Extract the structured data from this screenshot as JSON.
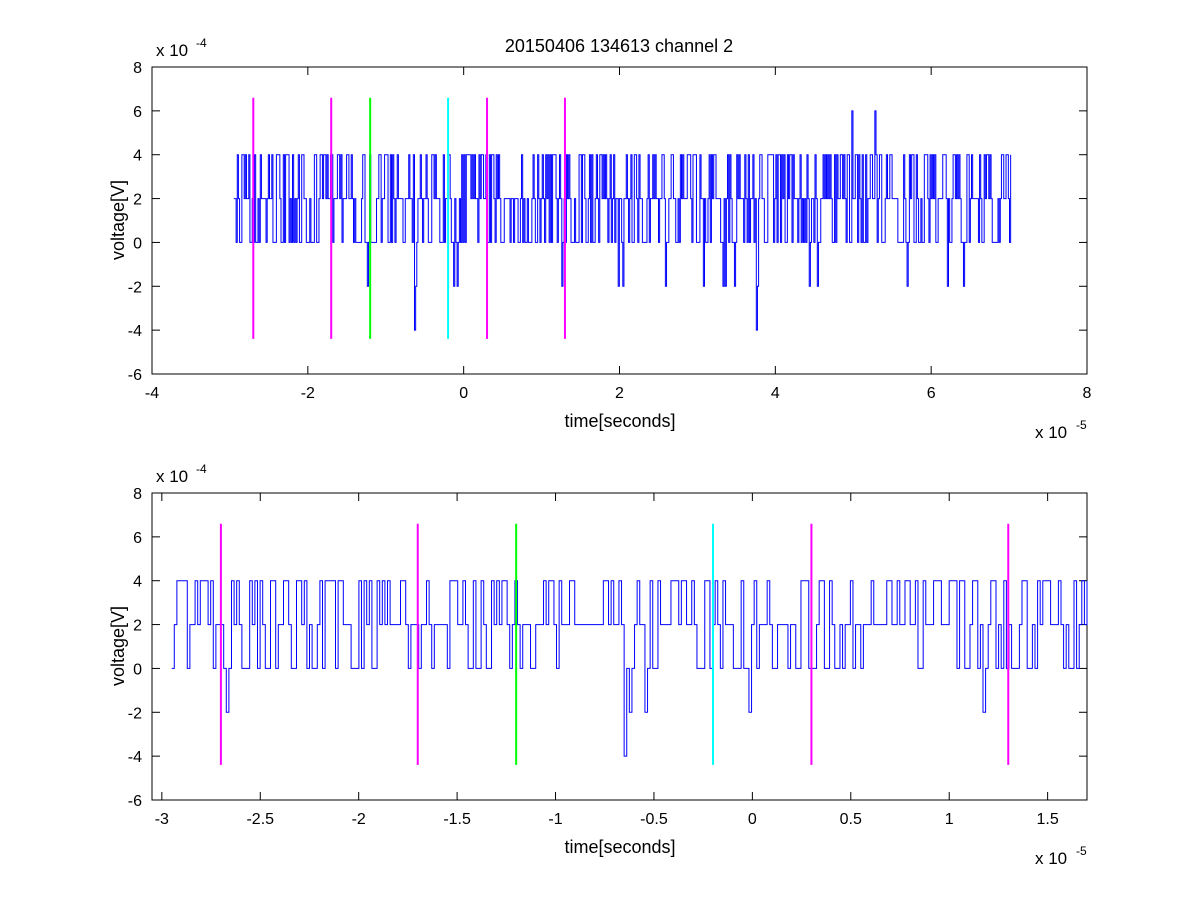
{
  "chart_data": [
    {
      "type": "line",
      "title": "20150406 134613 channel 2",
      "xlabel": "time[seconds]",
      "ylabel": "voltage[V]",
      "x_exponent_label": "x 10",
      "x_exponent": "-5",
      "y_exponent_label": "x 10",
      "y_exponent": "-4",
      "xlim": [
        -4,
        8
      ],
      "ylim": [
        -6,
        8
      ],
      "xticks": [
        "-4",
        "-2",
        "0",
        "2",
        "4",
        "6",
        "8"
      ],
      "yticks": [
        "-6",
        "-4",
        "-2",
        "0",
        "2",
        "4",
        "6",
        "8"
      ],
      "grid": false,
      "series": [
        {
          "color": "#0000ff",
          "x_range": [
            -2.95,
            7.02
          ],
          "baseline": 2,
          "levels": [
            -4,
            -2,
            0,
            2,
            4,
            6
          ],
          "peaks": [
            {
              "x": 4.98,
              "y": 6
            },
            {
              "x": 5.28,
              "y": 6
            },
            {
              "x": 5.35,
              "y": 4
            },
            {
              "x": 3.75,
              "y": -4
            },
            {
              "x": -0.63,
              "y": -4
            }
          ]
        }
      ],
      "markers": [
        {
          "x": -2.7,
          "color": "#ff00ff",
          "y_range": [
            -4.4,
            6.6
          ]
        },
        {
          "x": -1.7,
          "color": "#ff00ff",
          "y_range": [
            -4.4,
            6.6
          ]
        },
        {
          "x": -1.2,
          "color": "#00ff00",
          "y_range": [
            -4.4,
            6.6
          ]
        },
        {
          "x": -0.2,
          "color": "#00ffff",
          "y_range": [
            -4.4,
            6.6
          ]
        },
        {
          "x": 0.3,
          "color": "#ff00ff",
          "y_range": [
            -4.4,
            6.6
          ]
        },
        {
          "x": 1.3,
          "color": "#ff00ff",
          "y_range": [
            -4.4,
            6.6
          ]
        }
      ]
    },
    {
      "type": "line",
      "title": "",
      "xlabel": "time[seconds]",
      "ylabel": "voltage[V]",
      "x_exponent_label": "x 10",
      "x_exponent": "-5",
      "y_exponent_label": "x 10",
      "y_exponent": "-4",
      "xlim": [
        -3.05,
        1.7
      ],
      "ylim": [
        -6,
        8
      ],
      "xticks": [
        "-3",
        "-2.5",
        "-2",
        "-1.5",
        "-1",
        "-0.5",
        "0",
        "0.5",
        "1",
        "1.5"
      ],
      "yticks": [
        "-6",
        "-4",
        "-2",
        "0",
        "2",
        "4",
        "6",
        "8"
      ],
      "grid": false,
      "series": [
        {
          "color": "#0000ff",
          "x_range": [
            -2.95,
            1.7
          ],
          "baseline": 2,
          "levels": [
            -4,
            -2,
            0,
            2,
            4
          ],
          "peaks": [
            {
              "x": -0.65,
              "y": -4
            }
          ]
        }
      ],
      "markers": [
        {
          "x": -2.7,
          "color": "#ff00ff",
          "y_range": [
            -4.4,
            6.6
          ]
        },
        {
          "x": -1.7,
          "color": "#ff00ff",
          "y_range": [
            -4.4,
            6.6
          ]
        },
        {
          "x": -1.2,
          "color": "#00ff00",
          "y_range": [
            -4.4,
            6.6
          ]
        },
        {
          "x": -0.2,
          "color": "#00ffff",
          "y_range": [
            -4.4,
            6.6
          ]
        },
        {
          "x": 0.3,
          "color": "#ff00ff",
          "y_range": [
            -4.4,
            6.6
          ]
        },
        {
          "x": 1.3,
          "color": "#ff00ff",
          "y_range": [
            -4.4,
            6.6
          ]
        }
      ]
    }
  ]
}
